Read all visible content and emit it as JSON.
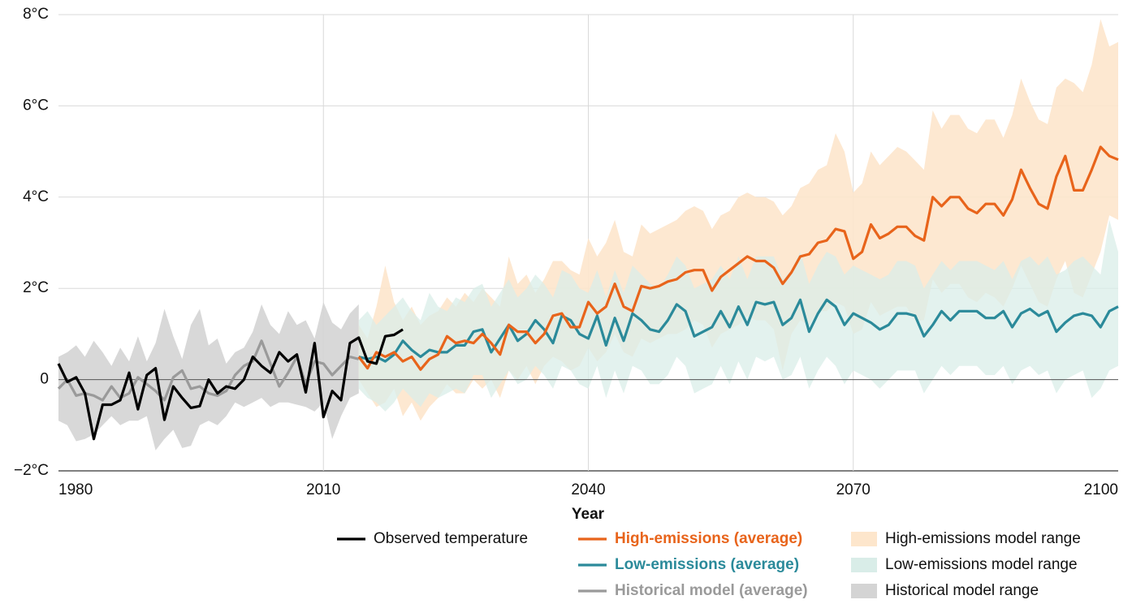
{
  "chart_data": {
    "type": "line",
    "x_title": "Year",
    "xlim": [
      1980,
      2100
    ],
    "xticks": [
      1980,
      2010,
      2040,
      2070,
      2100
    ],
    "ylim": [
      -2,
      8
    ],
    "yticks": [
      {
        "value": -2,
        "label": "−2°C"
      },
      0,
      {
        "value": 2,
        "label": "2°C"
      },
      {
        "value": 4,
        "label": "4°C"
      },
      {
        "value": 6,
        "label": "6°C"
      },
      {
        "value": 8,
        "label": "8°C"
      }
    ],
    "grid": true,
    "series": [
      {
        "name": "Observed temperature",
        "color": "#000000",
        "x": [
          1980,
          1981,
          1982,
          1983,
          1984,
          1985,
          1986,
          1987,
          1988,
          1989,
          1990,
          1991,
          1992,
          1993,
          1994,
          1995,
          1996,
          1997,
          1998,
          1999,
          2000,
          2001,
          2002,
          2003,
          2004,
          2005,
          2006,
          2007,
          2008,
          2009,
          2010,
          2011,
          2012,
          2013,
          2014,
          2015,
          2016,
          2017,
          2018,
          2019
        ],
        "values": [
          0.35,
          -0.05,
          0.05,
          -0.3,
          -1.3,
          -0.55,
          -0.55,
          -0.45,
          0.15,
          -0.65,
          0.1,
          0.25,
          -0.88,
          -0.15,
          -0.4,
          -0.62,
          -0.58,
          0.0,
          -0.3,
          -0.15,
          -0.2,
          0.0,
          0.5,
          0.3,
          0.15,
          0.6,
          0.4,
          0.55,
          -0.28,
          0.8,
          -0.82,
          -0.25,
          -0.45,
          0.8,
          0.92,
          0.4,
          0.35,
          0.95,
          0.98,
          1.1
        ]
      },
      {
        "name": "High-emissions (average)",
        "color": "#e8641b",
        "range_name": "High-emissions model range",
        "range_color": "#fde6cc",
        "x": [
          2014,
          2015,
          2016,
          2017,
          2018,
          2019,
          2020,
          2021,
          2022,
          2023,
          2024,
          2025,
          2026,
          2027,
          2028,
          2029,
          2030,
          2031,
          2032,
          2033,
          2034,
          2035,
          2036,
          2037,
          2038,
          2039,
          2040,
          2041,
          2042,
          2043,
          2044,
          2045,
          2046,
          2047,
          2048,
          2049,
          2050,
          2051,
          2052,
          2053,
          2054,
          2055,
          2056,
          2057,
          2058,
          2059,
          2060,
          2061,
          2062,
          2063,
          2064,
          2065,
          2066,
          2067,
          2068,
          2069,
          2070,
          2071,
          2072,
          2073,
          2074,
          2075,
          2076,
          2077,
          2078,
          2079,
          2080,
          2081,
          2082,
          2083,
          2084,
          2085,
          2086,
          2087,
          2088,
          2089,
          2090,
          2091,
          2092,
          2093,
          2094,
          2095,
          2096,
          2097,
          2098,
          2099,
          2100
        ],
        "values": [
          0.5,
          0.25,
          0.6,
          0.5,
          0.6,
          0.4,
          0.5,
          0.22,
          0.45,
          0.55,
          0.95,
          0.8,
          0.85,
          0.8,
          1.0,
          0.8,
          0.55,
          1.2,
          1.05,
          1.05,
          0.8,
          1.0,
          1.4,
          1.45,
          1.15,
          1.15,
          1.7,
          1.45,
          1.6,
          2.1,
          1.6,
          1.5,
          2.05,
          2.0,
          2.05,
          2.15,
          2.2,
          2.35,
          2.4,
          2.4,
          1.95,
          2.25,
          2.4,
          2.55,
          2.7,
          2.6,
          2.6,
          2.45,
          2.1,
          2.35,
          2.7,
          2.75,
          3.0,
          3.05,
          3.3,
          3.25,
          2.65,
          2.8,
          3.4,
          3.1,
          3.2,
          3.35,
          3.35,
          3.15,
          3.05,
          4.0,
          3.8,
          4.0,
          4.0,
          3.75,
          3.65,
          3.85,
          3.85,
          3.6,
          3.95,
          4.6,
          4.2,
          3.85,
          3.75,
          4.45,
          4.9,
          4.15,
          4.15,
          4.6,
          5.1,
          4.9,
          4.82
        ],
        "low": [
          0.0,
          -0.3,
          -0.6,
          -0.5,
          -0.2,
          -0.8,
          -0.5,
          -0.9,
          -0.6,
          -0.4,
          -0.1,
          -0.3,
          -0.3,
          0.0,
          -0.2,
          0.0,
          -0.4,
          0.2,
          0.0,
          0.3,
          -0.1,
          0.3,
          0.5,
          0.4,
          0.2,
          0.3,
          0.7,
          0.4,
          0.6,
          1.0,
          0.6,
          0.5,
          0.9,
          0.8,
          0.9,
          1.0,
          1.0,
          1.1,
          1.3,
          1.2,
          0.7,
          1.0,
          1.1,
          1.2,
          1.4,
          1.3,
          1.3,
          1.1,
          0.2,
          1.0,
          1.3,
          1.2,
          1.5,
          1.5,
          1.7,
          1.6,
          1.0,
          1.1,
          1.7,
          1.4,
          1.5,
          1.6,
          1.6,
          1.3,
          1.3,
          2.2,
          1.9,
          2.1,
          2.1,
          1.8,
          1.7,
          1.9,
          1.8,
          1.6,
          2.0,
          2.5,
          2.1,
          1.7,
          1.6,
          2.2,
          2.6,
          1.9,
          1.8,
          2.3,
          2.8,
          3.6,
          3.5
        ],
        "high": [
          1.2,
          0.9,
          1.6,
          2.5,
          1.7,
          1.3,
          1.6,
          1.2,
          1.4,
          1.5,
          1.8,
          1.6,
          1.9,
          1.7,
          2.0,
          1.8,
          1.6,
          2.7,
          2.1,
          2.3,
          1.9,
          2.2,
          2.6,
          2.6,
          2.4,
          2.3,
          3.1,
          2.7,
          3.0,
          3.5,
          2.8,
          2.7,
          3.4,
          3.2,
          3.3,
          3.4,
          3.5,
          3.7,
          3.8,
          3.7,
          3.3,
          3.6,
          3.7,
          4.0,
          4.1,
          4.0,
          4.0,
          3.9,
          3.6,
          3.8,
          4.2,
          4.3,
          4.6,
          4.7,
          5.4,
          5.0,
          4.1,
          4.3,
          5.0,
          4.7,
          4.9,
          5.1,
          5.0,
          4.8,
          4.6,
          5.9,
          5.5,
          5.8,
          5.8,
          5.5,
          5.4,
          5.7,
          5.7,
          5.3,
          5.8,
          6.6,
          6.1,
          5.7,
          5.6,
          6.4,
          6.6,
          6.5,
          6.3,
          6.9,
          7.9,
          7.3,
          7.4
        ]
      },
      {
        "name": "Low-emissions (average)",
        "color": "#2b8a9a",
        "range_name": "Low-emissions model range",
        "range_color": "#d9ede8",
        "x": [
          2014,
          2015,
          2016,
          2017,
          2018,
          2019,
          2020,
          2021,
          2022,
          2023,
          2024,
          2025,
          2026,
          2027,
          2028,
          2029,
          2030,
          2031,
          2032,
          2033,
          2034,
          2035,
          2036,
          2037,
          2038,
          2039,
          2040,
          2041,
          2042,
          2043,
          2044,
          2045,
          2046,
          2047,
          2048,
          2049,
          2050,
          2051,
          2052,
          2053,
          2054,
          2055,
          2056,
          2057,
          2058,
          2059,
          2060,
          2061,
          2062,
          2063,
          2064,
          2065,
          2066,
          2067,
          2068,
          2069,
          2070,
          2071,
          2072,
          2073,
          2074,
          2075,
          2076,
          2077,
          2078,
          2079,
          2080,
          2081,
          2082,
          2083,
          2084,
          2085,
          2086,
          2087,
          2088,
          2089,
          2090,
          2091,
          2092,
          2093,
          2094,
          2095,
          2096,
          2097,
          2098,
          2099,
          2100
        ],
        "values": [
          0.5,
          0.45,
          0.5,
          0.4,
          0.55,
          0.85,
          0.65,
          0.5,
          0.65,
          0.6,
          0.6,
          0.75,
          0.75,
          1.05,
          1.1,
          0.6,
          0.9,
          1.2,
          0.85,
          1.0,
          1.3,
          1.1,
          0.8,
          1.4,
          1.3,
          1.0,
          0.9,
          1.4,
          0.75,
          1.35,
          0.85,
          1.45,
          1.3,
          1.1,
          1.05,
          1.3,
          1.65,
          1.5,
          0.95,
          1.05,
          1.15,
          1.5,
          1.15,
          1.6,
          1.2,
          1.7,
          1.65,
          1.7,
          1.2,
          1.35,
          1.75,
          1.05,
          1.45,
          1.75,
          1.6,
          1.2,
          1.45,
          1.35,
          1.25,
          1.1,
          1.2,
          1.45,
          1.45,
          1.4,
          0.95,
          1.2,
          1.5,
          1.3,
          1.5,
          1.5,
          1.5,
          1.35,
          1.35,
          1.5,
          1.15,
          1.45,
          1.55,
          1.4,
          1.5,
          1.05,
          1.25,
          1.4,
          1.45,
          1.4,
          1.15,
          1.5,
          1.6
        ],
        "low": [
          -0.2,
          -0.4,
          -0.5,
          -0.7,
          -0.5,
          -0.2,
          -0.4,
          -0.6,
          -0.3,
          -0.4,
          -0.3,
          -0.2,
          -0.3,
          0.1,
          0.1,
          -0.4,
          -0.1,
          0.2,
          -0.1,
          0.0,
          0.3,
          0.1,
          -0.2,
          0.3,
          0.2,
          -0.1,
          -0.2,
          0.3,
          -0.4,
          0.2,
          -0.3,
          0.3,
          0.2,
          -0.1,
          -0.1,
          0.1,
          0.5,
          0.3,
          -0.3,
          -0.2,
          -0.1,
          0.3,
          -0.1,
          0.4,
          0.0,
          0.5,
          0.4,
          0.5,
          0.0,
          0.1,
          0.5,
          -0.2,
          0.2,
          0.5,
          0.3,
          -0.1,
          0.2,
          0.1,
          0.0,
          -0.2,
          0.0,
          0.2,
          0.2,
          0.2,
          -0.3,
          0.0,
          0.3,
          0.1,
          0.3,
          0.3,
          0.3,
          0.1,
          0.1,
          0.3,
          -0.1,
          0.2,
          0.3,
          0.1,
          0.2,
          -0.3,
          0.0,
          0.1,
          0.2,
          -0.4,
          -0.2,
          0.2,
          0.3
        ],
        "high": [
          1.3,
          1.5,
          1.2,
          1.4,
          1.6,
          1.8,
          1.5,
          1.3,
          1.9,
          1.6,
          1.5,
          1.8,
          1.7,
          2.0,
          2.1,
          1.6,
          1.9,
          2.2,
          1.8,
          2.0,
          2.3,
          2.1,
          1.8,
          2.4,
          2.3,
          2.0,
          1.9,
          2.4,
          1.8,
          2.4,
          1.9,
          2.5,
          2.3,
          2.1,
          2.0,
          2.3,
          2.7,
          2.5,
          2.0,
          2.1,
          2.2,
          2.5,
          2.2,
          2.7,
          2.2,
          2.7,
          2.7,
          2.7,
          2.2,
          2.4,
          2.8,
          2.1,
          2.5,
          2.8,
          2.7,
          2.3,
          2.5,
          2.4,
          2.3,
          2.2,
          2.3,
          2.6,
          2.6,
          2.5,
          2.0,
          2.3,
          2.6,
          2.4,
          2.6,
          2.6,
          2.6,
          2.5,
          2.4,
          2.6,
          2.2,
          2.6,
          2.7,
          2.5,
          2.7,
          2.3,
          2.4,
          2.6,
          2.7,
          2.5,
          2.3,
          3.5,
          2.8
        ]
      },
      {
        "name": "Historical model (average)",
        "color": "#9a9a9a",
        "range_name": "Historical model range",
        "range_color": "#d4d4d4",
        "x": [
          1980,
          1981,
          1982,
          1983,
          1984,
          1985,
          1986,
          1987,
          1988,
          1989,
          1990,
          1991,
          1992,
          1993,
          1994,
          1995,
          1996,
          1997,
          1998,
          1999,
          2000,
          2001,
          2002,
          2003,
          2004,
          2005,
          2006,
          2007,
          2008,
          2009,
          2010,
          2011,
          2012,
          2013,
          2014
        ],
        "values": [
          -0.2,
          0.0,
          -0.35,
          -0.3,
          -0.35,
          -0.45,
          -0.15,
          -0.4,
          -0.3,
          0.05,
          -0.1,
          -0.25,
          -0.45,
          0.05,
          0.2,
          -0.2,
          -0.15,
          -0.3,
          -0.35,
          -0.25,
          0.1,
          0.3,
          0.4,
          0.85,
          0.35,
          -0.15,
          0.15,
          0.5,
          -0.1,
          0.4,
          0.35,
          0.1,
          0.3,
          0.5,
          0.45
        ],
        "low": [
          -0.9,
          -1.0,
          -1.35,
          -1.3,
          -1.2,
          -1.0,
          -0.8,
          -1.0,
          -0.9,
          -0.9,
          -0.8,
          -1.55,
          -1.3,
          -1.1,
          -1.5,
          -1.45,
          -1.0,
          -0.9,
          -1.0,
          -0.8,
          -0.5,
          -0.6,
          -0.5,
          -0.4,
          -0.6,
          -0.5,
          -0.5,
          -0.55,
          -0.6,
          -0.7,
          -0.5,
          -1.3,
          -0.8,
          -0.4,
          -0.3
        ],
        "high": [
          0.5,
          0.6,
          0.75,
          0.5,
          0.85,
          0.6,
          0.3,
          0.7,
          0.4,
          0.95,
          0.4,
          0.8,
          1.55,
          0.95,
          0.45,
          1.2,
          1.55,
          0.75,
          0.9,
          0.35,
          0.6,
          0.7,
          1.05,
          1.65,
          1.2,
          1.0,
          1.5,
          1.2,
          1.3,
          0.9,
          1.7,
          1.25,
          1.1,
          1.45,
          1.65
        ]
      }
    ]
  }
}
